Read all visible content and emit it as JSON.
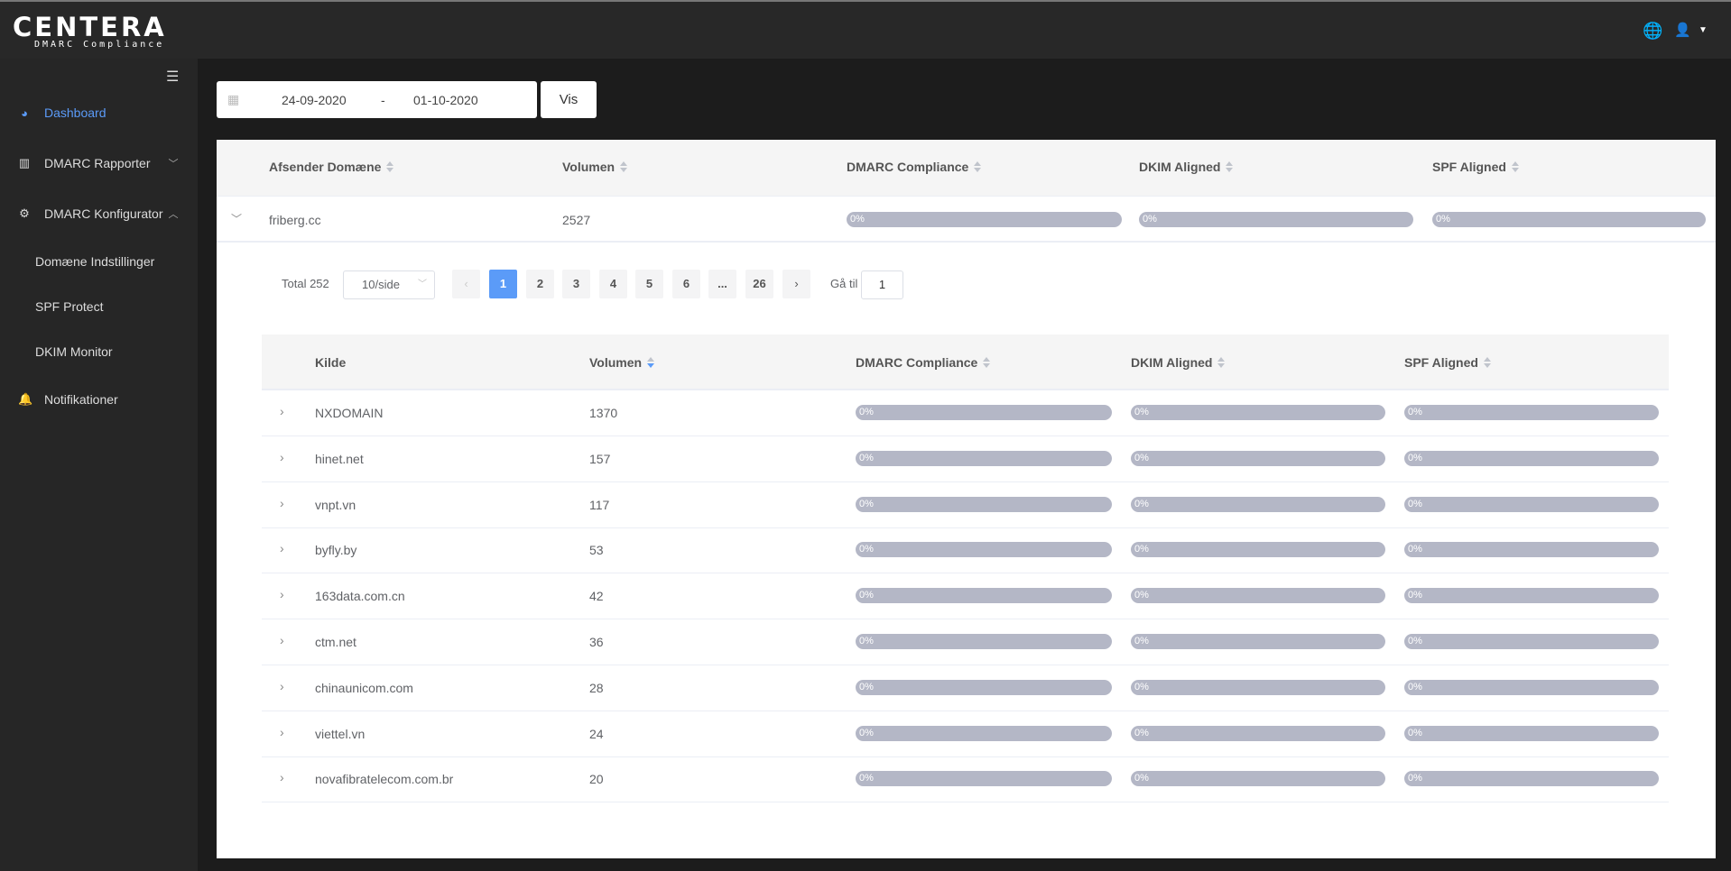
{
  "header": {
    "logo": "CENTERA",
    "logo_sub": "DMARC Compliance",
    "icons": [
      "globe-icon",
      "user-icon",
      "caret-down-icon"
    ]
  },
  "sidebar": {
    "items": [
      {
        "label": "Dashboard",
        "icon": "dashboard-icon",
        "active": true
      },
      {
        "label": "DMARC Rapporter",
        "icon": "bar-chart-icon"
      },
      {
        "label": "DMARC Konfigurator",
        "icon": "gears-icon"
      },
      {
        "label": "Domæne Indstillinger"
      },
      {
        "label": "SPF Protect"
      },
      {
        "label": "DKIM Monitor"
      },
      {
        "label": "Notifikationer",
        "icon": "bell-icon"
      }
    ]
  },
  "filter": {
    "start": "24-09-2020",
    "sep": "-",
    "end": "01-10-2020",
    "button": "Vis"
  },
  "outer_table": {
    "headers": [
      "Afsender Domæne",
      "Volumen",
      "DMARC Compliance",
      "DKIM Aligned",
      "SPF Aligned"
    ],
    "row": {
      "domain": "friberg.cc",
      "volume": "2527",
      "dmarc": "0%",
      "dkim": "0%",
      "spf": "0%"
    }
  },
  "pagination": {
    "total": "Total 252",
    "page_size": "10/side",
    "pages": [
      "1",
      "2",
      "3",
      "4",
      "5",
      "6",
      "...",
      "26"
    ],
    "current": "1",
    "goto_label": "Gå til",
    "goto_value": "1"
  },
  "inner_table": {
    "headers": [
      "Kilde",
      "Volumen",
      "DMARC Compliance",
      "DKIM Aligned",
      "SPF Aligned"
    ],
    "rows": [
      {
        "source": "NXDOMAIN",
        "volume": "1370",
        "dmarc": "0%",
        "dkim": "0%",
        "spf": "0%"
      },
      {
        "source": "hinet.net",
        "volume": "157",
        "dmarc": "0%",
        "dkim": "0%",
        "spf": "0%"
      },
      {
        "source": "vnpt.vn",
        "volume": "117",
        "dmarc": "0%",
        "dkim": "0%",
        "spf": "0%"
      },
      {
        "source": "byfly.by",
        "volume": "53",
        "dmarc": "0%",
        "dkim": "0%",
        "spf": "0%"
      },
      {
        "source": "163data.com.cn",
        "volume": "42",
        "dmarc": "0%",
        "dkim": "0%",
        "spf": "0%"
      },
      {
        "source": "ctm.net",
        "volume": "36",
        "dmarc": "0%",
        "dkim": "0%",
        "spf": "0%"
      },
      {
        "source": "chinaunicom.com",
        "volume": "28",
        "dmarc": "0%",
        "dkim": "0%",
        "spf": "0%"
      },
      {
        "source": "viettel.vn",
        "volume": "24",
        "dmarc": "0%",
        "dkim": "0%",
        "spf": "0%"
      },
      {
        "source": "novafibratelecom.com.br",
        "volume": "20",
        "dmarc": "0%",
        "dkim": "0%",
        "spf": "0%"
      }
    ]
  }
}
